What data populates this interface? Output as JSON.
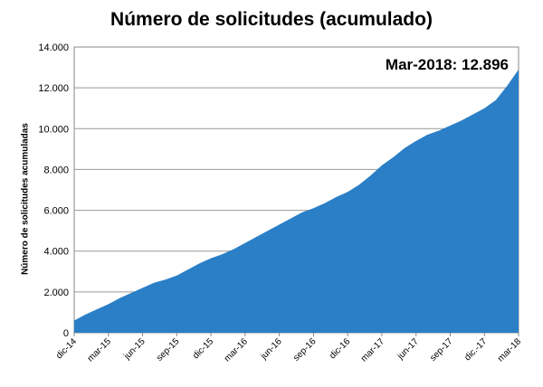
{
  "chart_data": {
    "type": "area",
    "title": "Número de solicitudes (acumulado)",
    "ylabel": "Número de solicitudes acumuladas",
    "xlabel": "",
    "ylim": [
      0,
      14000
    ],
    "yticks": [
      "0",
      "2.000",
      "4.000",
      "6.000",
      "8.000",
      "10.000",
      "12.000",
      "14.000"
    ],
    "categories": [
      "dic-14",
      "mar-15",
      "jun-15",
      "sep-15",
      "dic-15",
      "mar-16",
      "jun-16",
      "sep-16",
      "dic-16",
      "mar-17",
      "jun-17",
      "sep-17",
      "dic.-17",
      "mar-18"
    ],
    "x": [
      "dic-14",
      "ene-15",
      "feb-15",
      "mar-15",
      "abr-15",
      "may-15",
      "jun-15",
      "jul-15",
      "ago-15",
      "sep-15",
      "oct-15",
      "nov-15",
      "dic-15",
      "ene-16",
      "feb-16",
      "mar-16",
      "abr-16",
      "may-16",
      "jun-16",
      "jul-16",
      "ago-16",
      "sep-16",
      "oct-16",
      "nov-16",
      "dic-16",
      "ene-17",
      "feb-17",
      "mar-17",
      "abr-17",
      "may-17",
      "jun-17",
      "jul-17",
      "ago-17",
      "sep-17",
      "oct-17",
      "nov-17",
      "dic-17",
      "ene-18",
      "feb-18",
      "mar-18"
    ],
    "values": [
      600,
      900,
      1150,
      1400,
      1700,
      1950,
      2200,
      2450,
      2600,
      2800,
      3100,
      3400,
      3650,
      3850,
      4100,
      4400,
      4700,
      5000,
      5300,
      5600,
      5900,
      6100,
      6350,
      6650,
      6900,
      7250,
      7700,
      8200,
      8600,
      9050,
      9400,
      9700,
      9900,
      10150,
      10400,
      10700,
      11000,
      11400,
      12100,
      12896
    ],
    "annotation": "Mar-2018: 12.896",
    "grid": true,
    "color": "#2b7fc7"
  }
}
